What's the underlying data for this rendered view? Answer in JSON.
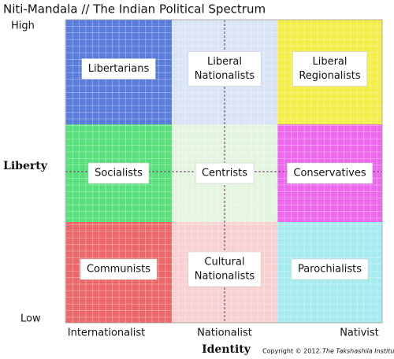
{
  "title": "Niti-Mandala // The Indian Political Spectrum",
  "y_axis": {
    "label": "Liberty",
    "high": "High",
    "low": "Low"
  },
  "x_axis": {
    "label": "Identity",
    "ticks": [
      "Internationalist",
      "Nationalist",
      "Nativist"
    ]
  },
  "copyright": {
    "text": "Copyright © 2012.",
    "institution": "The Takshashila Institution"
  },
  "cells": [
    {
      "lines": [
        "Libertarians"
      ],
      "color": "#5a7ddc"
    },
    {
      "lines": [
        "Liberal",
        "Nationalists"
      ],
      "color": "#d9e4f7"
    },
    {
      "lines": [
        "Liberal",
        "Regionalists"
      ],
      "color": "#f4ee48"
    },
    {
      "lines": [
        "Socialists"
      ],
      "color": "#58e07c"
    },
    {
      "lines": [
        "Centrists"
      ],
      "color": "#e4f5df"
    },
    {
      "lines": [
        "Conservatives"
      ],
      "color": "#ec68ec"
    },
    {
      "lines": [
        "Communists"
      ],
      "color": "#ec6868"
    },
    {
      "lines": [
        "Cultural",
        "Nationalists"
      ],
      "color": "#f7d0d0"
    },
    {
      "lines": [
        "Parochialists"
      ],
      "color": "#a6ecef"
    }
  ]
}
